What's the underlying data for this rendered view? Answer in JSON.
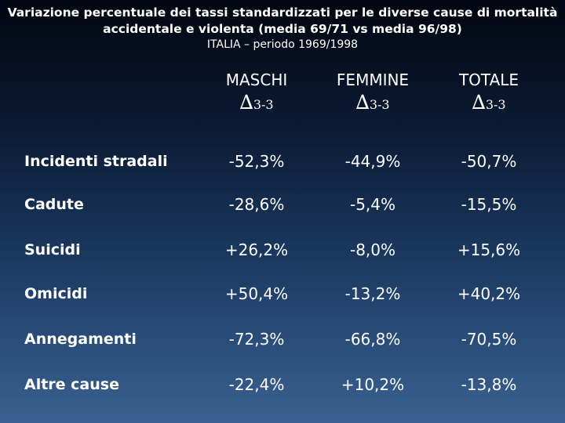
{
  "title": "Variazione percentuale dei tassi standardizzati per le diverse cause di mortalità accidentale e violenta (media 69/71 vs media 96/98)",
  "subtitle": "ITALIA – periodo 1969/1998",
  "columns": [
    {
      "name": "MASCHI",
      "delta_symbol": "∆",
      "delta_sub": "3-3"
    },
    {
      "name": "FEMMINE",
      "delta_symbol": "∆",
      "delta_sub": "3-3"
    },
    {
      "name": "TOTALE",
      "delta_symbol": "∆",
      "delta_sub": "3-3"
    }
  ],
  "rows": [
    {
      "label": "Incidenti stradali",
      "values": [
        "-52,3%",
        "-44,9%",
        "-50,7%"
      ]
    },
    {
      "label": "Cadute",
      "values": [
        "-28,6%",
        "-5,4%",
        "-15,5%"
      ]
    },
    {
      "label": "Suicidi",
      "values": [
        "+26,2%",
        "-8,0%",
        "+15,6%"
      ]
    },
    {
      "label": "Omicidi",
      "values": [
        "+50,4%",
        "-13,2%",
        "+40,2%"
      ]
    },
    {
      "label": "Annegamenti",
      "values": [
        "-72,3%",
        "-66,8%",
        "-70,5%"
      ]
    },
    {
      "label": "Altre cause",
      "values": [
        "-22,4%",
        "+10,2%",
        "-13,8%"
      ]
    }
  ]
}
